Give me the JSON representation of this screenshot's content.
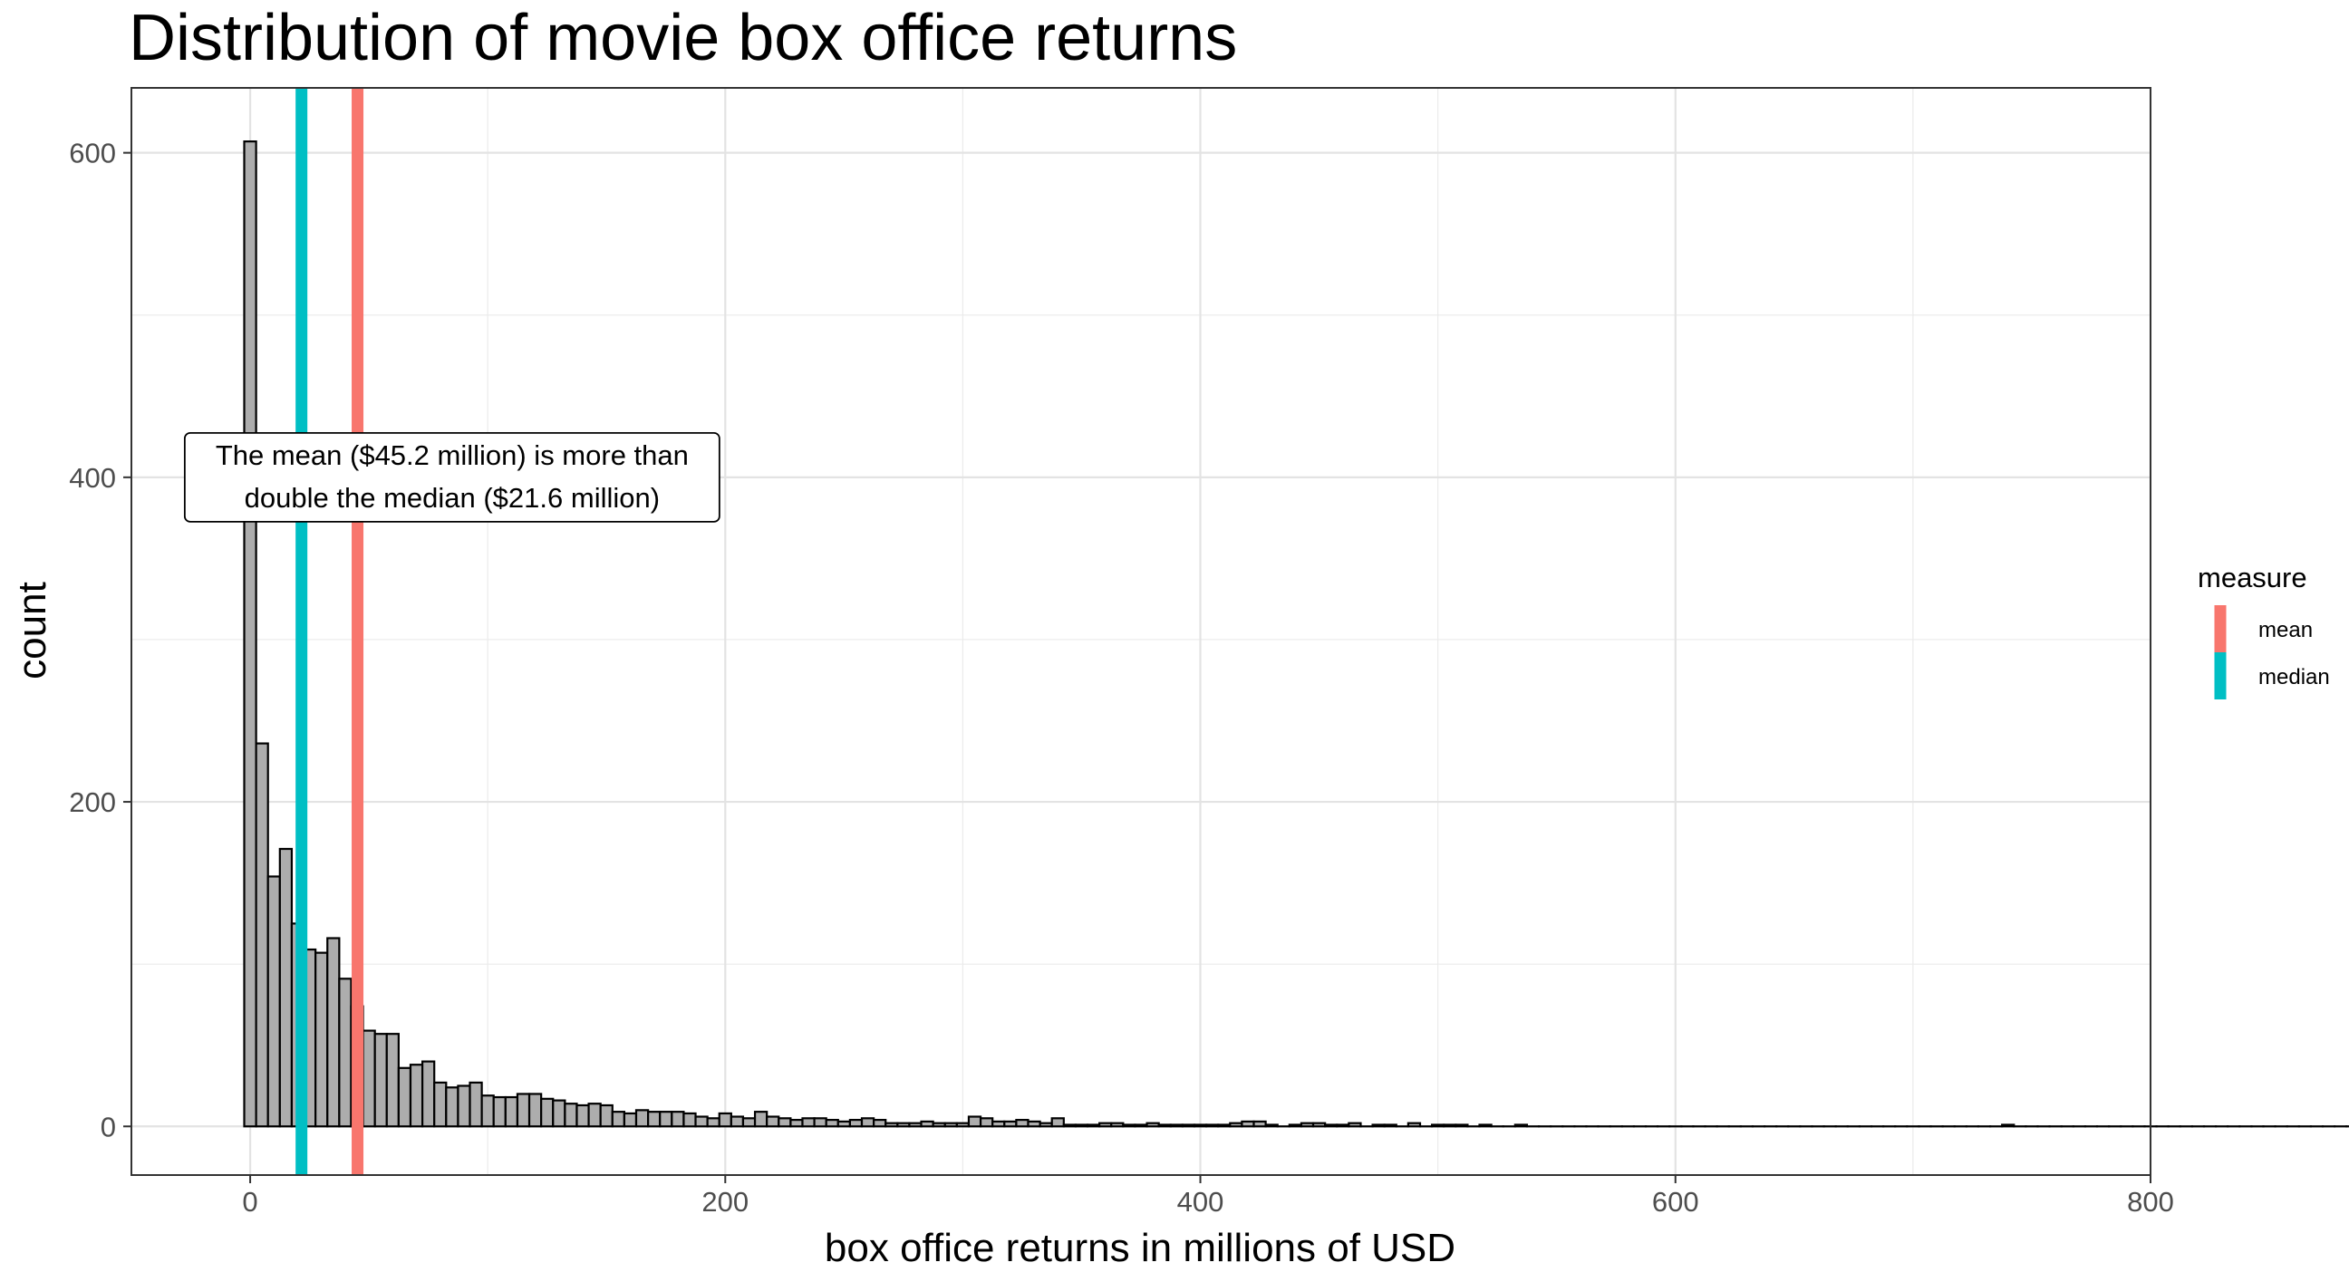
{
  "chart_data": {
    "type": "bar",
    "title": "Distribution of movie box office returns",
    "xlabel": "box office returns in millions of USD",
    "ylabel": "count",
    "xlim": [
      -50,
      800
    ],
    "ylim": [
      -30,
      640
    ],
    "xticks": [
      0,
      200,
      400,
      600,
      800
    ],
    "yticks": [
      0,
      200,
      400,
      600
    ],
    "grid": true,
    "bin_width": 5,
    "bin_start": -2.5,
    "counts": [
      607,
      236,
      154,
      171,
      125,
      109,
      107,
      116,
      91,
      74,
      59,
      57,
      57,
      36,
      38,
      40,
      27,
      24,
      25,
      27,
      19,
      18,
      18,
      20,
      20,
      17,
      16,
      14,
      13,
      14,
      13,
      9,
      8,
      10,
      9,
      9,
      9,
      8,
      6,
      5,
      8,
      6,
      5,
      9,
      6,
      5,
      4,
      5,
      5,
      4,
      3,
      4,
      5,
      4,
      2,
      2,
      2,
      3,
      2,
      2,
      2,
      6,
      5,
      3,
      3,
      4,
      3,
      2,
      5,
      1,
      1,
      1,
      2,
      2,
      1,
      1,
      2,
      1,
      1,
      1,
      1,
      1,
      1,
      2,
      3,
      3,
      1,
      0,
      1,
      2,
      2,
      1,
      1,
      2,
      0,
      1,
      1,
      0,
      2,
      0,
      1,
      1,
      1,
      0,
      1,
      0,
      0,
      1,
      0,
      0,
      0,
      0,
      0,
      0,
      0,
      0,
      0,
      0,
      0,
      0,
      0,
      0,
      0,
      0,
      0,
      0,
      0,
      0,
      0,
      0,
      0,
      0,
      0,
      0,
      0,
      0,
      0,
      0,
      0,
      0,
      0,
      0,
      0,
      0,
      0,
      0,
      0,
      0,
      1,
      0,
      0,
      0,
      0,
      0,
      0,
      0,
      0,
      0,
      0,
      0,
      0,
      0,
      0,
      0,
      0,
      0,
      0,
      0,
      0,
      0,
      0,
      0,
      0,
      0,
      0,
      0,
      0,
      0,
      0,
      0,
      0,
      0,
      0,
      0,
      1,
      0,
      0,
      0,
      0,
      0,
      0,
      0,
      0,
      0,
      0,
      0,
      0,
      0,
      0,
      0,
      0,
      0,
      0,
      0,
      0,
      0,
      0,
      0,
      0,
      0,
      0,
      0,
      0,
      0,
      0,
      0,
      0,
      0,
      0,
      0,
      0,
      0,
      0,
      0,
      0,
      0,
      0,
      0,
      0,
      0,
      0,
      0,
      0,
      0,
      0,
      0,
      0,
      0,
      0,
      0,
      1
    ],
    "vlines": [
      {
        "name": "mean",
        "value": 45.2,
        "color": "#F8766D"
      },
      {
        "name": "median",
        "value": 21.6,
        "color": "#00BFC4"
      }
    ],
    "legend": {
      "title": "measure",
      "position": "right"
    },
    "annotation": {
      "lines": [
        "The mean ($45.2 million) is more than",
        "double the median ($21.6 million)"
      ],
      "x": 85,
      "y": 400
    },
    "bar_fill": "#adadad",
    "bar_stroke": "#000000"
  }
}
